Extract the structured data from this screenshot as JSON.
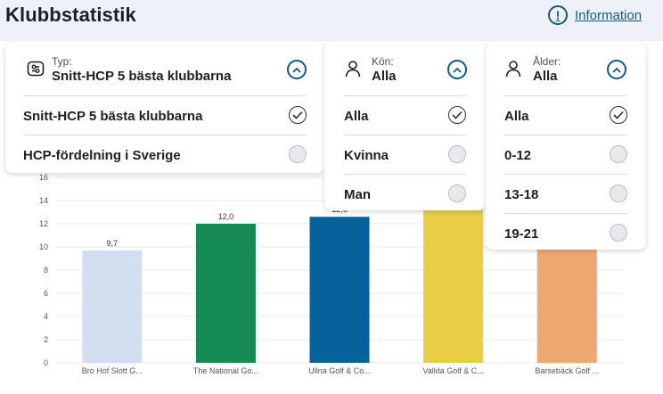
{
  "header": {
    "title": "Klubbstatistik",
    "info_label": "Information",
    "info_icon": "exclamation-circle-icon"
  },
  "filters": {
    "type": {
      "small_label": "Typ:",
      "value": "Snitt-HCP 5 bästa klubbarna",
      "icon": "sliders-icon",
      "options": [
        {
          "label": "Snitt-HCP 5 bästa klubbarna",
          "selected": true
        },
        {
          "label": "HCP-fördelning i Sverige",
          "selected": false
        }
      ]
    },
    "gender": {
      "small_label": "Kön:",
      "value": "Alla",
      "icon": "person-icon",
      "options": [
        {
          "label": "Alla",
          "selected": true
        },
        {
          "label": "Kvinna",
          "selected": false
        },
        {
          "label": "Man",
          "selected": false
        }
      ]
    },
    "age": {
      "small_label": "Ålder:",
      "value": "Alla",
      "icon": "person-icon",
      "options": [
        {
          "label": "Alla",
          "selected": true
        },
        {
          "label": "0-12",
          "selected": false
        },
        {
          "label": "13-18",
          "selected": false
        },
        {
          "label": "19-21",
          "selected": false
        }
      ]
    }
  },
  "chart_data": {
    "type": "bar",
    "categories": [
      "Bro Hof Slott G...",
      "The National Go...",
      "Ullna Golf & Co...",
      "Vallda Golf & C...",
      "Barsebäck Golf ..."
    ],
    "values": [
      9.7,
      12.0,
      12.6,
      13.3,
      9.8
    ],
    "data_labels": [
      "9,7",
      "12,0",
      "12,6",
      "",
      ""
    ],
    "colors": [
      "#d3dff0",
      "#158a52",
      "#06629a",
      "#e9cd45",
      "#eda872"
    ],
    "ylim": [
      0,
      16
    ],
    "yticks": [
      0,
      2,
      4,
      6,
      8,
      10,
      12,
      14,
      16
    ],
    "title": "",
    "xlabel": "",
    "ylabel": "",
    "grid": true
  }
}
